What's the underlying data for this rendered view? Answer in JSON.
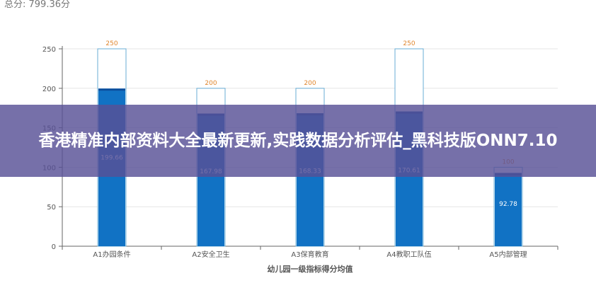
{
  "header": {
    "total_label": "总分: 799.36分"
  },
  "banner": {
    "title": "香港精准内部资料大全最新更新,实践数据分析评估_黑科技版ONN7.10"
  },
  "chart_data": {
    "type": "bar",
    "title": "",
    "xlabel": "幼儿园一级指标得分均值",
    "ylabel": "",
    "ylim": [
      0,
      250
    ],
    "yticks": [
      0,
      50,
      100,
      150,
      200,
      250
    ],
    "grid": true,
    "categories": [
      "A1办园条件",
      "A2安全卫生",
      "A3保育教育",
      "A4教职工队伍",
      "A5内部管理"
    ],
    "series": [
      {
        "values": [
          250,
          200,
          200,
          250,
          100
        ],
        "color": "#ffffff",
        "stroke": "#6aaed6"
      },
      {
        "values": [
          199.66,
          167.98,
          168.33,
          170.61,
          92.78
        ],
        "color": "#1172c4"
      }
    ],
    "max_labels": [
      "250",
      "200",
      "200",
      "250",
      "100"
    ],
    "value_labels": [
      "199.66",
      "167.98",
      "168.33",
      "170.61",
      "92.78"
    ],
    "colors": {
      "max_label": "#e0862e",
      "value_label": "#ffffff",
      "axis_text": "#555555"
    }
  }
}
